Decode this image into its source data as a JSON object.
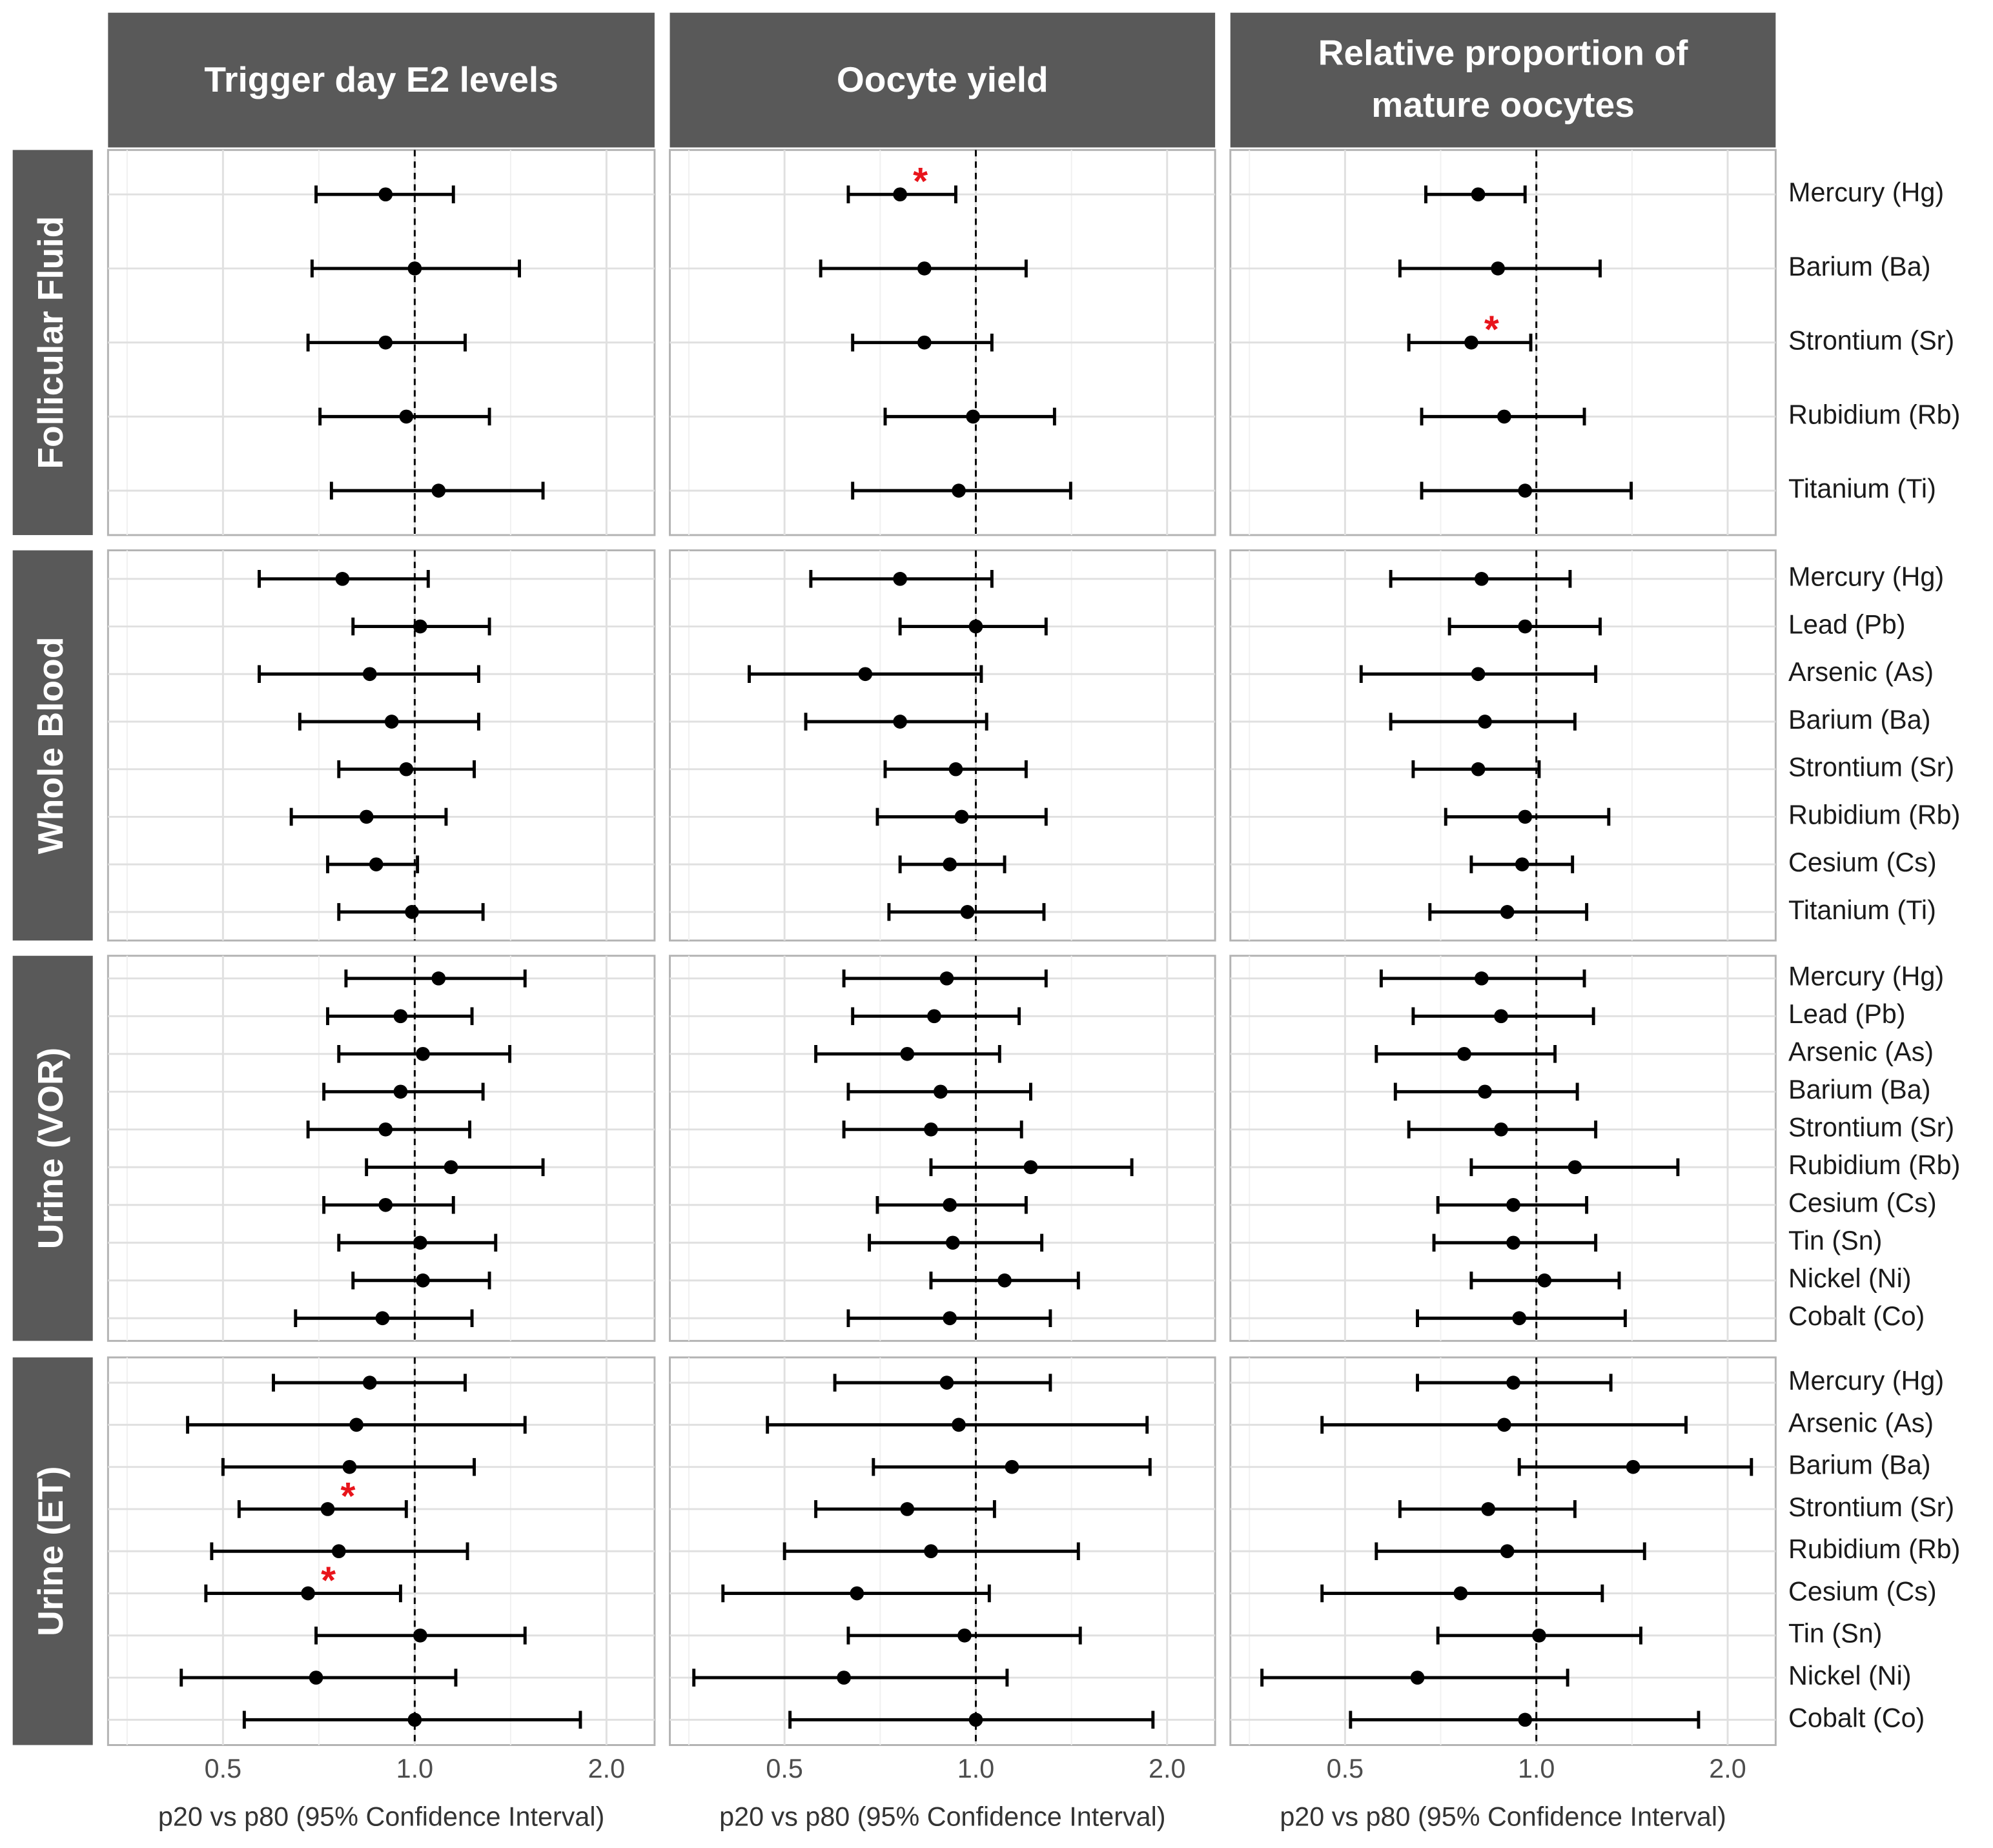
{
  "chart_data": {
    "type": "forest",
    "columns": [
      "Trigger day E2 levels",
      "Oocyte yield",
      "Relative proportion of mature oocytes"
    ],
    "x_label": "p20 vs p80 (95% Confidence Interval)",
    "xlim": [
      0.33,
      2.38
    ],
    "xticks": [
      0.5,
      {
        "value": 1,
        "label": "1.0"
      },
      {
        "value": 2,
        "label": "2.0"
      }
    ],
    "log_scale": true,
    "grid": true,
    "reference_line": 1,
    "color": "#000000",
    "flag_color": "#e8141b",
    "header_color": "#595959",
    "rows": [
      {
        "name": "Follicular Fluid",
        "categories": [
          "Mercury (Hg)",
          "Barium (Ba)",
          "Strontium (Sr)",
          "Rubidium (Rb)",
          "Titanium (Ti)"
        ],
        "panels": [
          {
            "estimate": [
              0.9,
              1.0,
              0.9,
              0.97,
              1.09
            ],
            "lower": [
              0.7,
              0.69,
              0.68,
              0.71,
              0.74
            ],
            "upper": [
              1.15,
              1.46,
              1.2,
              1.31,
              1.59
            ],
            "flags": [
              null,
              null,
              null,
              null,
              null
            ]
          },
          {
            "estimate": [
              0.76,
              0.83,
              0.83,
              0.99,
              0.94
            ],
            "lower": [
              0.63,
              0.57,
              0.64,
              0.72,
              0.64
            ],
            "upper": [
              0.93,
              1.2,
              1.06,
              1.33,
              1.41
            ],
            "flags": [
              "*",
              null,
              null,
              null,
              null
            ]
          },
          {
            "estimate": [
              0.81,
              0.87,
              0.79,
              0.89,
              0.96
            ],
            "lower": [
              0.67,
              0.61,
              0.63,
              0.66,
              0.66
            ],
            "upper": [
              0.96,
              1.26,
              0.98,
              1.19,
              1.41
            ],
            "flags": [
              null,
              null,
              "*",
              null,
              null
            ]
          }
        ]
      },
      {
        "name": "Whole Blood",
        "categories": [
          "Mercury (Hg)",
          "Lead (Pb)",
          "Arsenic (As)",
          "Barium (Ba)",
          "Strontium (Sr)",
          "Rubidium (Rb)",
          "Cesium (Cs)",
          "Titanium (Ti)"
        ],
        "panels": [
          {
            "estimate": [
              0.77,
              1.02,
              0.85,
              0.92,
              0.97,
              0.84,
              0.87,
              0.99
            ],
            "lower": [
              0.57,
              0.8,
              0.57,
              0.66,
              0.76,
              0.64,
              0.73,
              0.76
            ],
            "upper": [
              1.05,
              1.31,
              1.26,
              1.26,
              1.24,
              1.12,
              1.01,
              1.28
            ],
            "flags": [
              null,
              null,
              null,
              null,
              null,
              null,
              null,
              null
            ]
          },
          {
            "estimate": [
              0.76,
              1.0,
              0.67,
              0.76,
              0.93,
              0.95,
              0.91,
              0.97
            ],
            "lower": [
              0.55,
              0.76,
              0.44,
              0.54,
              0.72,
              0.7,
              0.76,
              0.73
            ],
            "upper": [
              1.06,
              1.29,
              1.02,
              1.04,
              1.2,
              1.29,
              1.11,
              1.28
            ],
            "flags": [
              null,
              null,
              null,
              null,
              null,
              null,
              null,
              null
            ]
          },
          {
            "estimate": [
              0.82,
              0.96,
              0.81,
              0.83,
              0.81,
              0.96,
              0.95,
              0.9
            ],
            "lower": [
              0.59,
              0.73,
              0.53,
              0.59,
              0.64,
              0.72,
              0.79,
              0.68
            ],
            "upper": [
              1.13,
              1.26,
              1.24,
              1.15,
              1.01,
              1.3,
              1.14,
              1.2
            ],
            "flags": [
              null,
              null,
              null,
              null,
              null,
              null,
              null,
              null
            ]
          }
        ]
      },
      {
        "name": "Urine (VOR)",
        "categories": [
          "Mercury (Hg)",
          "Lead (Pb)",
          "Arsenic (As)",
          "Barium (Ba)",
          "Strontium (Sr)",
          "Rubidium (Rb)",
          "Cesium (Cs)",
          "Tin (Sn)",
          "Nickel (Ni)",
          "Cobalt (Co)"
        ],
        "panels": [
          {
            "estimate": [
              1.09,
              0.95,
              1.03,
              0.95,
              0.9,
              1.14,
              0.9,
              1.02,
              1.03,
              0.89
            ],
            "lower": [
              0.78,
              0.73,
              0.76,
              0.72,
              0.68,
              0.84,
              0.72,
              0.76,
              0.8,
              0.65
            ],
            "upper": [
              1.49,
              1.23,
              1.41,
              1.28,
              1.22,
              1.59,
              1.15,
              1.34,
              1.31,
              1.23
            ],
            "flags": [
              null,
              null,
              null,
              null,
              null,
              null,
              null,
              null,
              null,
              null
            ]
          },
          {
            "estimate": [
              0.9,
              0.86,
              0.78,
              0.88,
              0.85,
              1.22,
              0.91,
              0.92,
              1.11,
              0.91
            ],
            "lower": [
              0.62,
              0.64,
              0.56,
              0.63,
              0.62,
              0.85,
              0.7,
              0.68,
              0.85,
              0.63
            ],
            "upper": [
              1.29,
              1.17,
              1.09,
              1.22,
              1.18,
              1.76,
              1.2,
              1.27,
              1.45,
              1.31
            ],
            "flags": [
              null,
              null,
              null,
              null,
              null,
              null,
              null,
              null,
              null,
              null
            ]
          },
          {
            "estimate": [
              0.82,
              0.88,
              0.77,
              0.83,
              0.88,
              1.15,
              0.92,
              0.92,
              1.03,
              0.94
            ],
            "lower": [
              0.57,
              0.64,
              0.56,
              0.6,
              0.63,
              0.79,
              0.7,
              0.69,
              0.79,
              0.65
            ],
            "upper": [
              1.19,
              1.23,
              1.07,
              1.16,
              1.24,
              1.67,
              1.2,
              1.24,
              1.35,
              1.38
            ],
            "flags": [
              null,
              null,
              null,
              null,
              null,
              null,
              null,
              null,
              null,
              null
            ]
          }
        ]
      },
      {
        "name": "Urine (ET)",
        "categories": [
          "Mercury (Hg)",
          "Arsenic (As)",
          "Barium (Ba)",
          "Strontium (Sr)",
          "Rubidium (Rb)",
          "Cesium (Cs)",
          "Tin (Sn)",
          "Nickel (Ni)",
          "Cobalt (Co)"
        ],
        "panels": [
          {
            "estimate": [
              0.85,
              0.81,
              0.79,
              0.73,
              0.76,
              0.68,
              1.02,
              0.7,
              1.0
            ],
            "lower": [
              0.6,
              0.44,
              0.5,
              0.53,
              0.48,
              0.47,
              0.7,
              0.43,
              0.54
            ],
            "upper": [
              1.2,
              1.49,
              1.24,
              0.97,
              1.21,
              0.95,
              1.49,
              1.16,
              1.82
            ],
            "flags": [
              null,
              null,
              null,
              "*",
              null,
              "*",
              null,
              null,
              null
            ]
          },
          {
            "estimate": [
              0.9,
              0.94,
              1.14,
              0.78,
              0.85,
              0.65,
              0.96,
              0.62,
              1.0
            ],
            "lower": [
              0.6,
              0.47,
              0.69,
              0.56,
              0.5,
              0.4,
              0.63,
              0.36,
              0.51
            ],
            "upper": [
              1.31,
              1.86,
              1.88,
              1.07,
              1.45,
              1.05,
              1.46,
              1.12,
              1.9
            ],
            "flags": [
              null,
              null,
              null,
              null,
              null,
              null,
              null,
              null,
              null
            ]
          },
          {
            "estimate": [
              0.92,
              0.89,
              1.42,
              0.84,
              0.9,
              0.76,
              1.01,
              0.65,
              0.96
            ],
            "lower": [
              0.65,
              0.46,
              0.94,
              0.61,
              0.56,
              0.46,
              0.7,
              0.37,
              0.51
            ],
            "upper": [
              1.31,
              1.72,
              2.18,
              1.15,
              1.48,
              1.27,
              1.46,
              1.12,
              1.8
            ],
            "flags": [
              null,
              null,
              null,
              null,
              null,
              null,
              null,
              null,
              null
            ]
          }
        ]
      }
    ]
  }
}
